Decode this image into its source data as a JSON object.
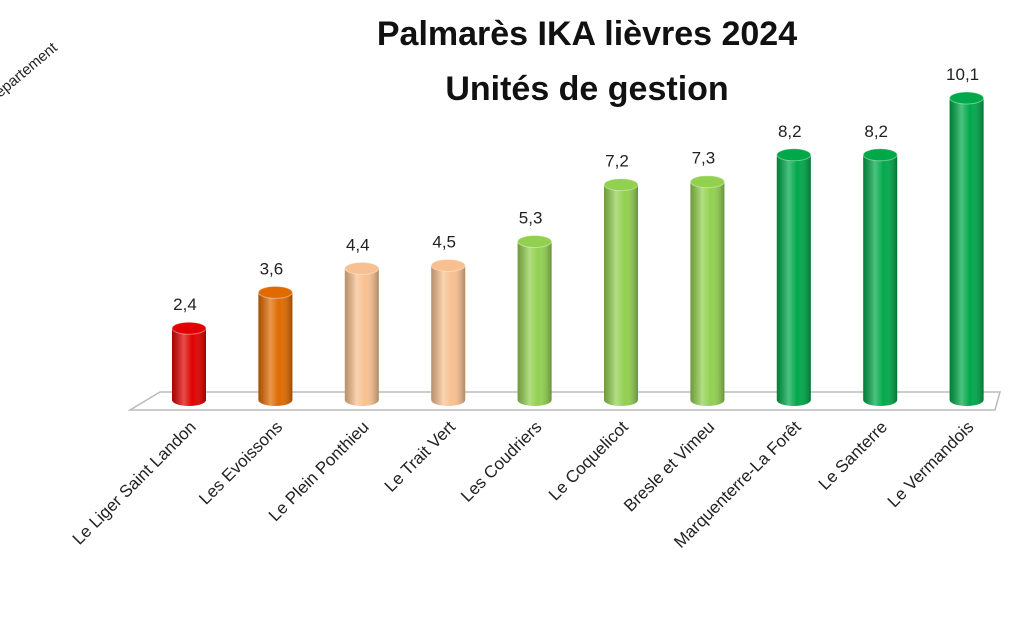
{
  "chart_data": {
    "type": "bar3d",
    "title": "Palmarès IKA lièvres 2024",
    "subtitle": "Unités de gestion",
    "annotation": "epartement",
    "categories": [
      "Le Liger Saint Landon",
      "Les Evoissons",
      "Le Plein Ponthieu",
      "Le Trait Vert",
      "Les Coudriers",
      "Le Coquelicot",
      "Bresle et Vimeu",
      "Marquenterre-La Forêt",
      "Le Santerre",
      "Le Vermandois"
    ],
    "values": [
      2.4,
      3.6,
      4.4,
      4.5,
      5.3,
      7.2,
      7.3,
      8.2,
      8.2,
      10.1
    ],
    "value_labels": [
      "2,4",
      "3,6",
      "4,4",
      "4,5",
      "5,3",
      "7,2",
      "7,3",
      "8,2",
      "8,2",
      "10,1"
    ],
    "colors": [
      "#e00000",
      "#e06a00",
      "#f8c090",
      "#f8c090",
      "#92d050",
      "#92d050",
      "#92d050",
      "#00a84a",
      "#00a84a",
      "#00a84a"
    ]
  }
}
